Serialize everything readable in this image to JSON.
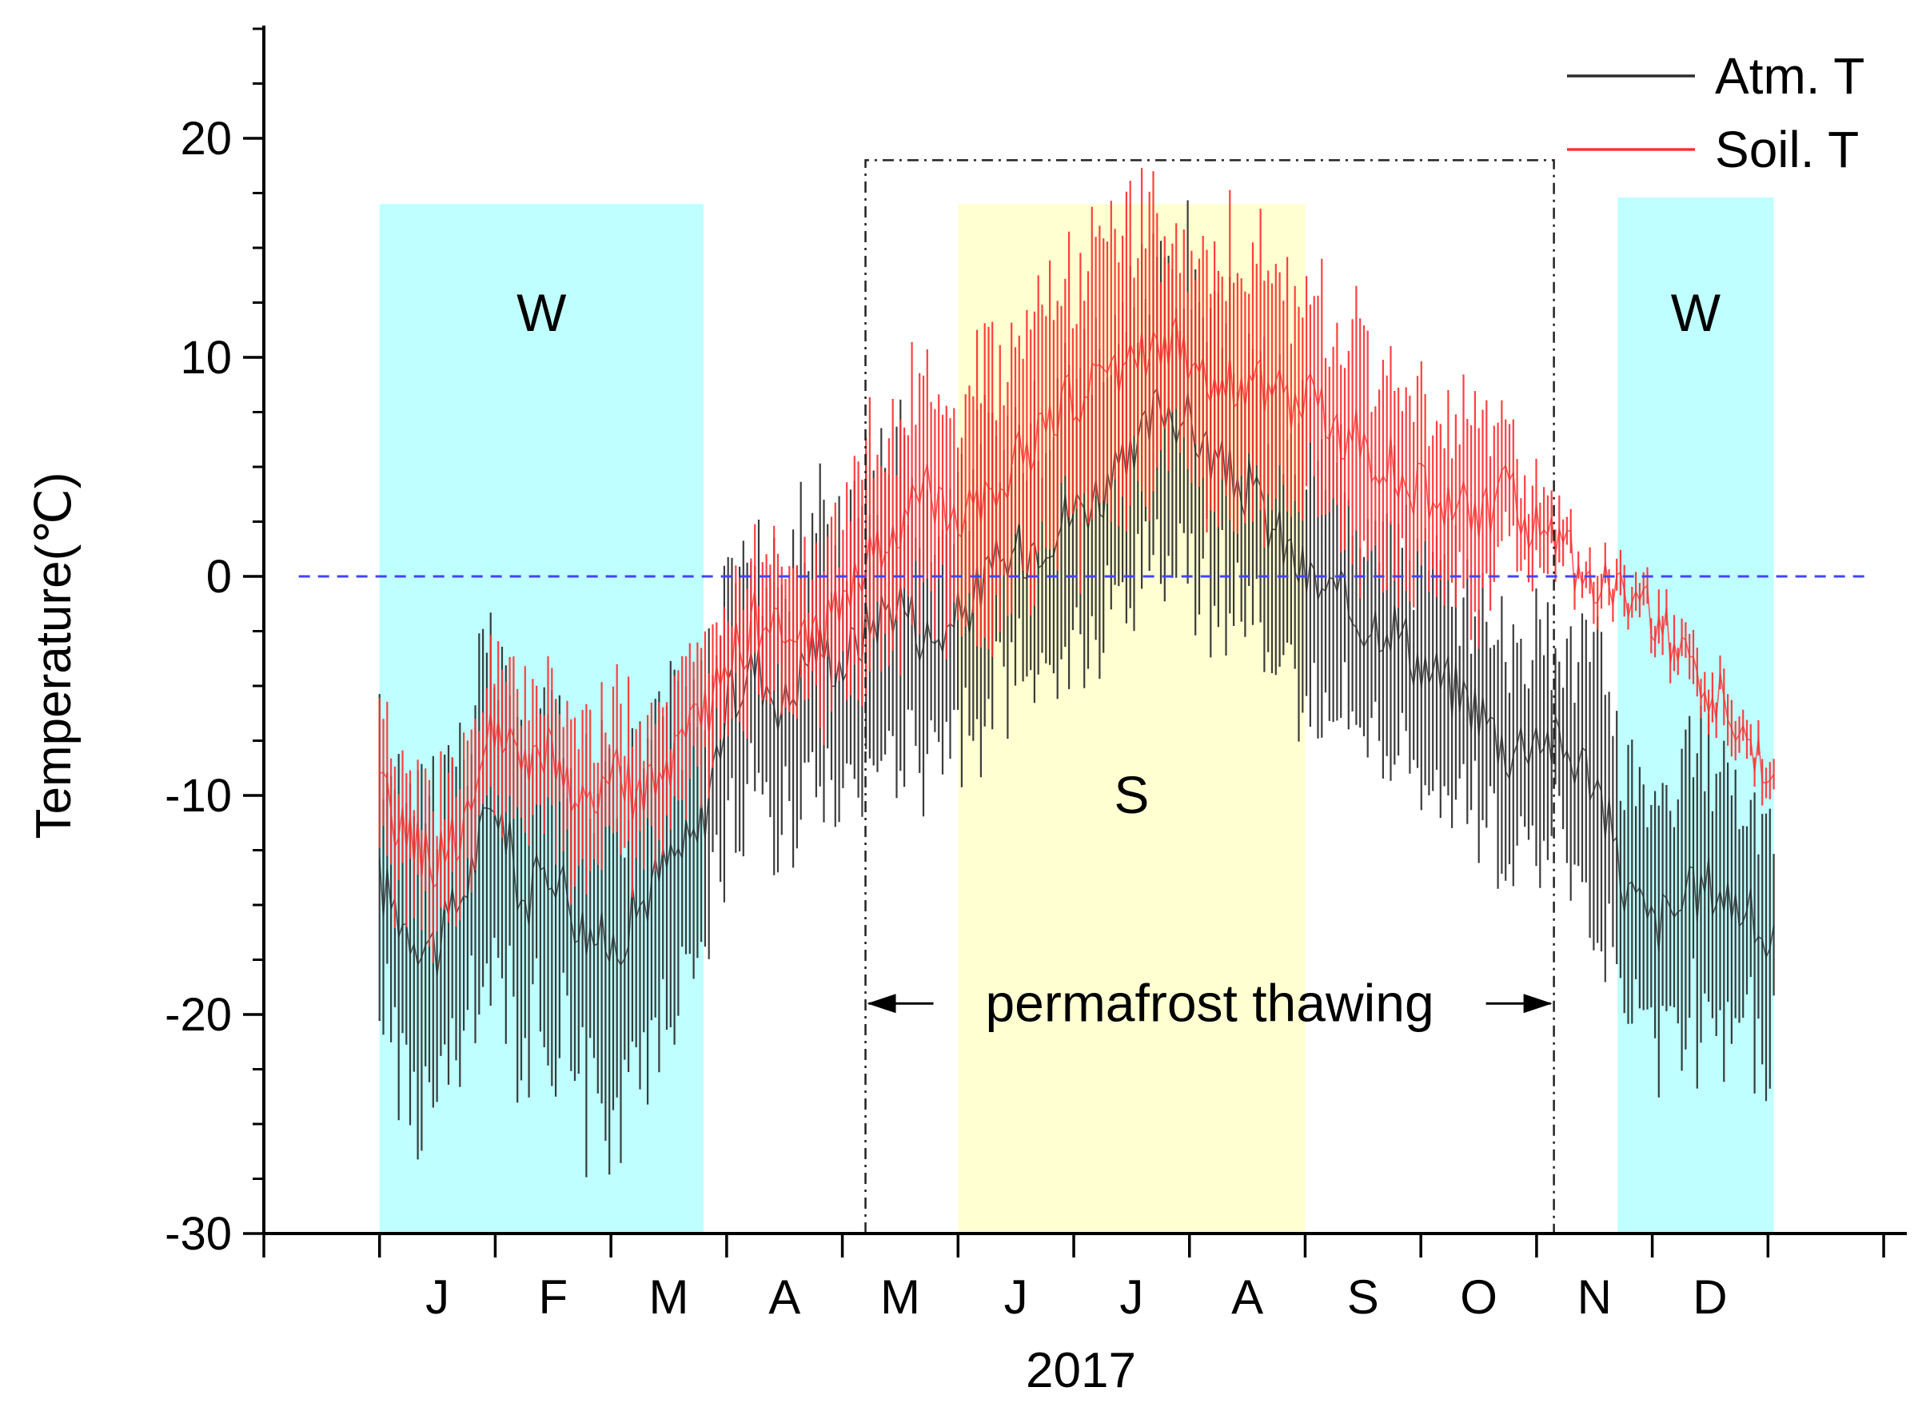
{
  "chart_data": {
    "type": "line",
    "title": "",
    "xlabel": "2017",
    "ylabel": "Temperature(℃)",
    "ylim": [
      -30,
      25
    ],
    "yticks": [
      -30,
      -20,
      -10,
      0,
      10,
      20
    ],
    "ytick_labels": [
      "-30",
      "-20",
      "-10",
      "0",
      "10",
      "20"
    ],
    "xlim": [
      -1,
      13.2
    ],
    "months": [
      {
        "label": "J",
        "center": 0.5
      },
      {
        "label": "F",
        "center": 1.5
      },
      {
        "label": "M",
        "center": 2.5
      },
      {
        "label": "A",
        "center": 3.5
      },
      {
        "label": "M",
        "center": 4.5
      },
      {
        "label": "J",
        "center": 5.5
      },
      {
        "label": "J",
        "center": 6.5
      },
      {
        "label": "A",
        "center": 7.5
      },
      {
        "label": "S",
        "center": 8.5
      },
      {
        "label": "O",
        "center": 9.5
      },
      {
        "label": "N",
        "center": 10.5
      },
      {
        "label": "D",
        "center": 11.5
      }
    ],
    "zero_line": {
      "y": 0,
      "color": "#4444ff",
      "style": "dashed"
    },
    "legend": {
      "placement": "top-right",
      "entries": [
        {
          "label": "Atm. T",
          "color": "#2b2b2b"
        },
        {
          "label": "Soil. T",
          "color": "#ff3030"
        }
      ]
    },
    "regions": [
      {
        "label": "W",
        "x_start": 0,
        "x_end": 2.8,
        "y_top": 17,
        "color": "#bfffff"
      },
      {
        "label": "S",
        "x_start": 5.0,
        "x_end": 8.0,
        "y_top": 17,
        "color": "#ffffd2"
      },
      {
        "label": "W",
        "x_start": 10.7,
        "x_end": 12.05,
        "y_top": 17.3,
        "color": "#bfffff"
      }
    ],
    "annotation": {
      "text": "permafrost thawing",
      "box_x_start": 4.2,
      "box_x_end": 10.15,
      "box_y_top": 19,
      "arrow_y": -19.5,
      "style": "dash-dot"
    },
    "series": [
      {
        "name": "Atm. T",
        "color": "#2b2b2b",
        "daily_mean_x": [
          0.0,
          0.25,
          0.5,
          0.75,
          1.0,
          1.25,
          1.5,
          1.75,
          2.0,
          2.25,
          2.5,
          2.75,
          3.0,
          3.25,
          3.5,
          3.75,
          4.0,
          4.25,
          4.5,
          4.75,
          5.0,
          5.25,
          5.5,
          5.75,
          6.0,
          6.25,
          6.5,
          6.75,
          7.0,
          7.25,
          7.5,
          7.75,
          8.0,
          8.25,
          8.5,
          8.75,
          9.0,
          9.25,
          9.5,
          9.75,
          10.0,
          10.25,
          10.5,
          10.75,
          11.0,
          11.25,
          11.5,
          11.75,
          12.05
        ],
        "daily_mean_y": [
          -14,
          -16,
          -17,
          -14,
          -10,
          -15,
          -13,
          -16,
          -17,
          -15,
          -13,
          -12,
          -6,
          -4,
          -6,
          -3,
          -4,
          -2,
          -1,
          -3,
          -2,
          0,
          1,
          2,
          3,
          4,
          5,
          8,
          7,
          5,
          4,
          2,
          0,
          -1,
          -2,
          -2,
          -4,
          -5,
          -6,
          -8,
          -7,
          -8,
          -9,
          -14,
          -16,
          -15,
          -14,
          -15,
          -17
        ],
        "daily_range": [
          6,
          7,
          8,
          7,
          7,
          7,
          7,
          8,
          8,
          7,
          7,
          6,
          6,
          6,
          6,
          6,
          6,
          7,
          7,
          6,
          6,
          6,
          6,
          6,
          7,
          7,
          7,
          7,
          7,
          6,
          6,
          6,
          6,
          6,
          6,
          6,
          5,
          5,
          5,
          5,
          5,
          5,
          6,
          6,
          6,
          6,
          6,
          6,
          5
        ]
      },
      {
        "name": "Soil. T",
        "color": "#ff3030",
        "daily_mean_x": [
          0.0,
          0.25,
          0.5,
          0.75,
          1.0,
          1.25,
          1.5,
          1.75,
          2.0,
          2.25,
          2.5,
          2.75,
          3.0,
          3.25,
          3.5,
          3.75,
          4.0,
          4.25,
          4.5,
          4.75,
          5.0,
          5.25,
          5.5,
          5.75,
          6.0,
          6.25,
          6.5,
          6.75,
          7.0,
          7.25,
          7.5,
          7.75,
          8.0,
          8.25,
          8.5,
          8.75,
          9.0,
          9.25,
          9.5,
          9.75,
          10.0,
          10.25,
          10.5,
          10.75,
          11.0,
          11.25,
          11.5,
          11.75,
          12.05
        ],
        "daily_mean_y": [
          -10,
          -12,
          -13,
          -11,
          -7,
          -9,
          -8,
          -11,
          -9,
          -10,
          -9,
          -7,
          -4,
          -2,
          -3,
          -3,
          -1,
          1,
          2,
          4,
          3,
          4,
          5,
          7,
          8,
          9,
          10,
          11,
          10,
          9,
          9,
          8,
          8,
          7,
          6,
          5,
          4,
          3,
          3,
          4,
          2,
          1,
          0,
          -1,
          -2,
          -3,
          -5,
          -7,
          -9
        ],
        "daily_range": [
          3,
          3,
          3,
          3,
          3,
          3,
          3,
          4,
          3,
          3,
          3,
          3,
          3,
          3,
          3,
          3,
          4,
          5,
          5,
          5,
          5,
          6,
          6,
          6,
          6,
          6,
          6,
          6,
          6,
          6,
          6,
          5,
          5,
          5,
          5,
          4,
          4,
          4,
          4,
          3,
          2,
          1,
          1,
          1,
          1,
          1,
          1,
          1,
          1
        ]
      }
    ]
  }
}
